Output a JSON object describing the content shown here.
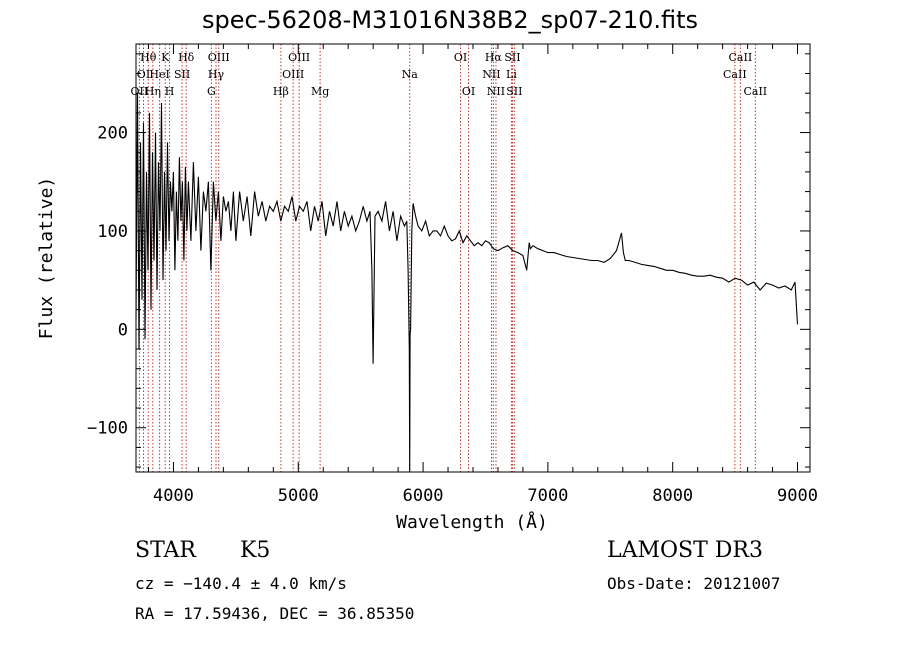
{
  "header": {
    "title": "spec-56208-M31016N38B2_sp07-210.fits"
  },
  "info": {
    "object_type": "STAR",
    "subclass": "K5",
    "survey": "LAMOST DR3",
    "cz": "cz = −140.4 ± 4.0 km/s",
    "obs_date": "Obs-Date: 20121007",
    "radec": "RA =  17.59436, DEC =  36.85350"
  },
  "chart_data": {
    "type": "line",
    "title": "spec-56208-M31016N38B2_sp07-210.fits",
    "xlabel": "Wavelength (Å)",
    "ylabel": "Flux (relative)",
    "xlim": [
      3700,
      9100
    ],
    "ylim": [
      -145,
      290
    ],
    "xticks": [
      4000,
      5000,
      6000,
      7000,
      8000,
      9000
    ],
    "xtick_labels": [
      "4000",
      "5000",
      "6000",
      "7000",
      "8000",
      "9000"
    ],
    "yticks": [
      -100,
      0,
      100,
      200
    ],
    "ytick_labels": [
      "−100",
      "0",
      "100",
      "200"
    ],
    "line_color": "#000000",
    "marker_color": "#c8322c",
    "line_markers": [
      {
        "label": "OII",
        "x": 3727,
        "row": 3
      },
      {
        "label": "Hθ",
        "x": 3798,
        "row": 1
      },
      {
        "label": "OI",
        "x": 3760,
        "row": 2
      },
      {
        "label": "Hη",
        "x": 3835,
        "row": 3
      },
      {
        "label": "K",
        "x": 3934,
        "row": 1
      },
      {
        "label": "HeI",
        "x": 3889,
        "row": 2
      },
      {
        "label": "H",
        "x": 3969,
        "row": 3
      },
      {
        "label": "SII",
        "x": 4069,
        "row": 2
      },
      {
        "label": "Hδ",
        "x": 4102,
        "row": 1
      },
      {
        "label": "OIII",
        "x": 4363,
        "row": 1
      },
      {
        "label": "Hγ",
        "x": 4341,
        "row": 2
      },
      {
        "label": "G",
        "x": 4304,
        "row": 3
      },
      {
        "label": "Hβ",
        "x": 4861,
        "row": 3
      },
      {
        "label": "OIII",
        "x": 5007,
        "row": 1
      },
      {
        "label": "OIII",
        "x": 4959,
        "row": 2
      },
      {
        "label": "Mg",
        "x": 5175,
        "row": 3
      },
      {
        "label": "Na",
        "x": 5893,
        "row": 2
      },
      {
        "label": "OI",
        "x": 6300,
        "row": 1
      },
      {
        "label": "OI",
        "x": 6364,
        "row": 3
      },
      {
        "label": "Hα",
        "x": 6563,
        "row": 1
      },
      {
        "label": "NII",
        "x": 6548,
        "row": 2
      },
      {
        "label": "NII",
        "x": 6584,
        "row": 3
      },
      {
        "label": "SII",
        "x": 6716,
        "row": 1
      },
      {
        "label": "Li",
        "x": 6708,
        "row": 2
      },
      {
        "label": "SII",
        "x": 6731,
        "row": 3
      },
      {
        "label": "CaII",
        "x": 8542,
        "row": 1
      },
      {
        "label": "CaII",
        "x": 8498,
        "row": 2
      },
      {
        "label": "CaII",
        "x": 8662,
        "row": 3
      }
    ],
    "series": [
      {
        "name": "flux",
        "x": [
          3700,
          3712,
          3724,
          3736,
          3748,
          3760,
          3772,
          3784,
          3796,
          3808,
          3820,
          3832,
          3844,
          3856,
          3868,
          3880,
          3892,
          3904,
          3916,
          3928,
          3940,
          3952,
          3964,
          3976,
          3988,
          4000,
          4012,
          4024,
          4036,
          4048,
          4060,
          4072,
          4084,
          4096,
          4108,
          4120,
          4140,
          4160,
          4180,
          4200,
          4220,
          4240,
          4260,
          4280,
          4300,
          4320,
          4340,
          4360,
          4380,
          4400,
          4420,
          4440,
          4460,
          4480,
          4500,
          4530,
          4560,
          4590,
          4620,
          4650,
          4680,
          4710,
          4740,
          4770,
          4800,
          4830,
          4860,
          4890,
          4920,
          4950,
          4980,
          5010,
          5040,
          5070,
          5100,
          5130,
          5160,
          5190,
          5220,
          5250,
          5280,
          5310,
          5340,
          5370,
          5400,
          5430,
          5460,
          5490,
          5520,
          5550,
          5575,
          5590,
          5600,
          5615,
          5640,
          5670,
          5700,
          5730,
          5760,
          5790,
          5820,
          5850,
          5870,
          5880,
          5890,
          5893,
          5896,
          5900,
          5910,
          5920,
          5940,
          5960,
          5990,
          6020,
          6050,
          6080,
          6110,
          6140,
          6170,
          6200,
          6230,
          6260,
          6290,
          6320,
          6350,
          6380,
          6410,
          6440,
          6470,
          6500,
          6530,
          6563,
          6600,
          6640,
          6680,
          6720,
          6760,
          6800,
          6830,
          6850,
          6860,
          6880,
          6920,
          6960,
          7000,
          7050,
          7100,
          7150,
          7200,
          7250,
          7300,
          7350,
          7400,
          7450,
          7500,
          7550,
          7590,
          7605,
          7620,
          7650,
          7700,
          7750,
          7800,
          7850,
          7900,
          7950,
          8000,
          8050,
          8100,
          8150,
          8200,
          8250,
          8300,
          8350,
          8400,
          8450,
          8500,
          8550,
          8600,
          8650,
          8700,
          8750,
          8800,
          8850,
          8900,
          8950,
          8980,
          9000
        ],
        "y": [
          10,
          240,
          -20,
          190,
          30,
          210,
          -10,
          160,
          60,
          220,
          20,
          180,
          70,
          200,
          40,
          170,
          100,
          230,
          50,
          160,
          80,
          190,
          90,
          150,
          120,
          160,
          60,
          140,
          90,
          175,
          110,
          150,
          70,
          165,
          100,
          150,
          90,
          170,
          100,
          155,
          80,
          140,
          120,
          150,
          60,
          150,
          110,
          140,
          90,
          135,
          120,
          130,
          100,
          140,
          90,
          140,
          110,
          135,
          95,
          140,
          115,
          130,
          110,
          125,
          120,
          130,
          110,
          125,
          120,
          135,
          110,
          125,
          120,
          130,
          100,
          125,
          110,
          130,
          95,
          120,
          105,
          130,
          100,
          120,
          105,
          115,
          100,
          110,
          125,
          110,
          120,
          60,
          -35,
          115,
          120,
          110,
          130,
          100,
          120,
          90,
          115,
          105,
          110,
          60,
          -20,
          -145,
          -5,
          0,
          100,
          128,
          115,
          105,
          100,
          110,
          95,
          100,
          100,
          95,
          105,
          95,
          90,
          92,
          100,
          88,
          95,
          90,
          85,
          88,
          85,
          90,
          88,
          82,
          80,
          83,
          85,
          80,
          78,
          75,
          60,
          88,
          82,
          85,
          82,
          80,
          78,
          78,
          76,
          74,
          73,
          72,
          71,
          70,
          70,
          68,
          72,
          80,
          98,
          78,
          70,
          70,
          68,
          66,
          65,
          64,
          62,
          60,
          60,
          58,
          57,
          55,
          54,
          54,
          55,
          53,
          52,
          48,
          52,
          50,
          45,
          48,
          40,
          47,
          45,
          42,
          44,
          40,
          48,
          5
        ]
      }
    ]
  }
}
